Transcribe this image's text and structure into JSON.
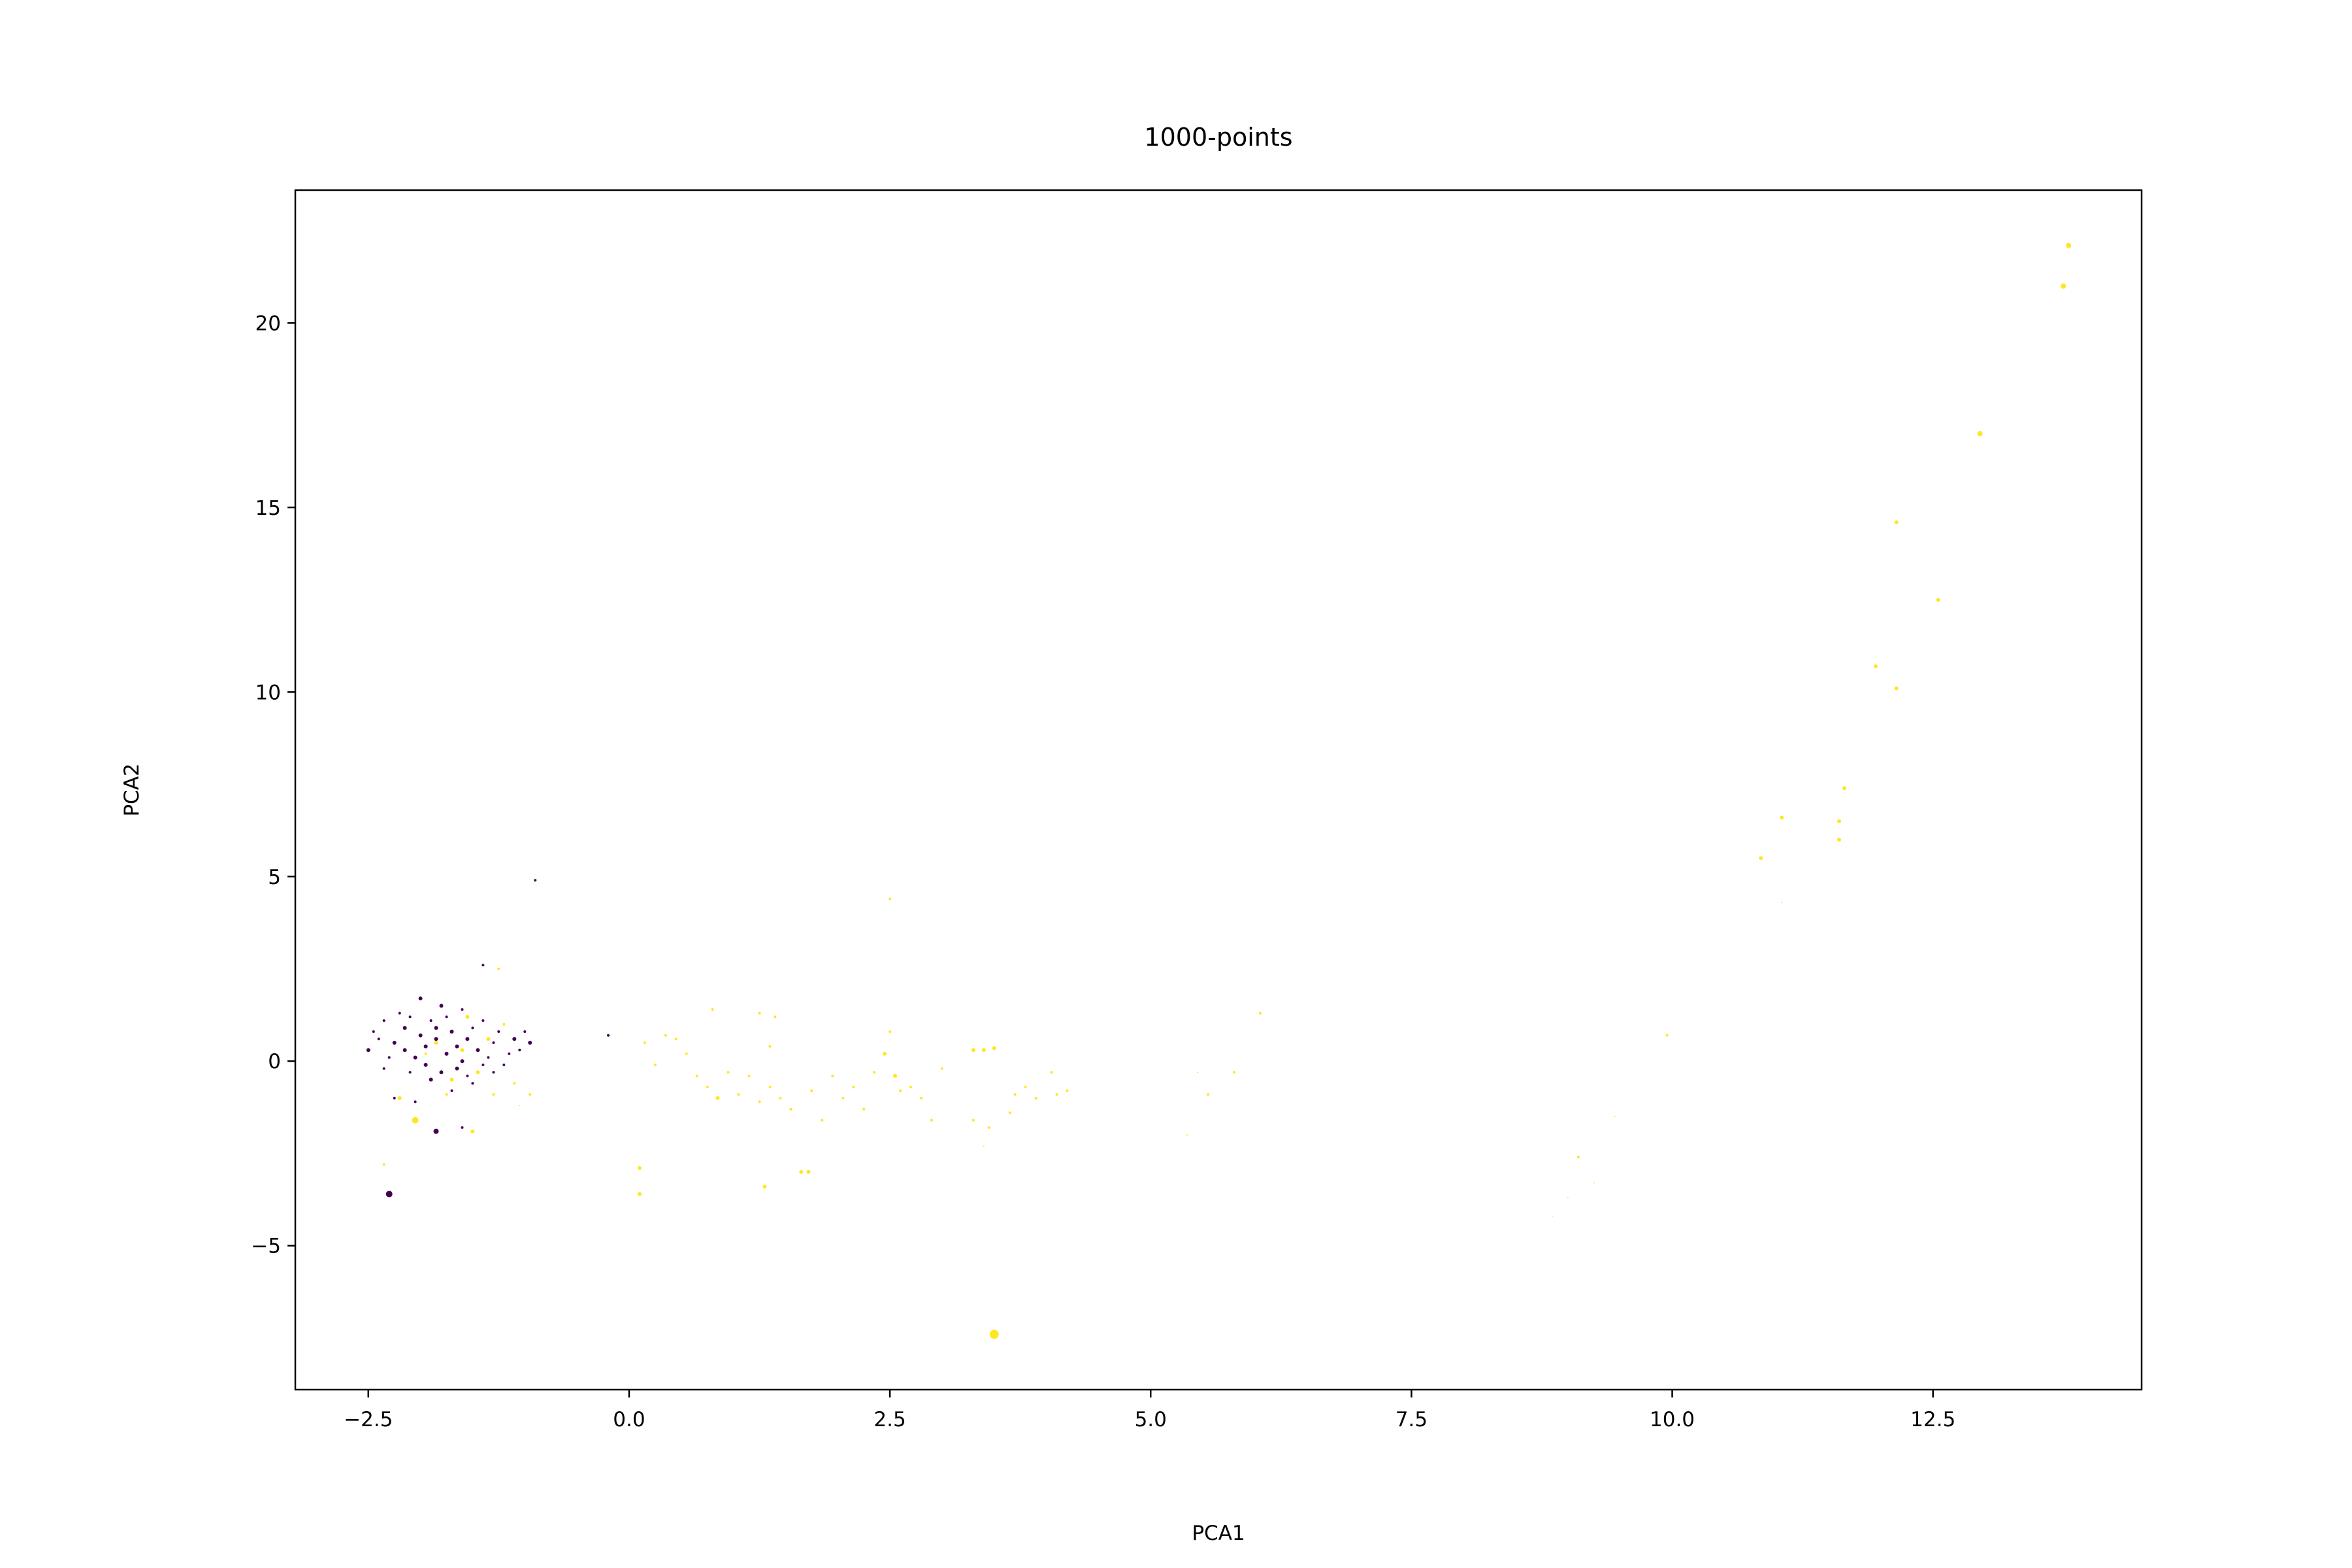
{
  "chart_data": {
    "type": "scatter",
    "title": "1000-points",
    "xlabel": "PCA1",
    "ylabel": "PCA2",
    "xlim": [
      -3.2,
      14.5
    ],
    "ylim": [
      -8.9,
      23.6
    ],
    "xticks": [
      -2.5,
      0.0,
      2.5,
      5.0,
      7.5,
      10.0,
      12.5
    ],
    "xtick_labels": [
      "−2.5",
      "0.0",
      "2.5",
      "5.0",
      "7.5",
      "10.0",
      "12.5"
    ],
    "yticks": [
      -5,
      0,
      5,
      10,
      15,
      20
    ],
    "ytick_labels": [
      "−5",
      "0",
      "5",
      "10",
      "15",
      "20"
    ],
    "grid": false,
    "legend": "none",
    "colors": {
      "class_0": "#440154",
      "class_1": "#fde725"
    },
    "series": [
      {
        "class": 0,
        "color": "#440154",
        "points": [
          {
            "x": -0.9,
            "y": 4.9,
            "s": 2
          },
          {
            "x": -1.4,
            "y": 2.6,
            "s": 2
          },
          {
            "x": -0.2,
            "y": 0.7,
            "s": 2
          },
          {
            "x": -2.3,
            "y": -3.6,
            "s": 5
          },
          {
            "x": -1.85,
            "y": -1.9,
            "s": 4
          },
          {
            "x": -1.6,
            "y": -1.8,
            "s": 2
          },
          {
            "x": -2.25,
            "y": -1.0,
            "s": 2
          },
          {
            "x": -2.05,
            "y": -1.1,
            "s": 2
          },
          {
            "x": -2.5,
            "y": 0.3,
            "s": 3
          },
          {
            "x": -2.45,
            "y": 0.8,
            "s": 2
          },
          {
            "x": -2.35,
            "y": 1.1,
            "s": 2
          },
          {
            "x": -2.2,
            "y": 1.3,
            "s": 2
          },
          {
            "x": -2.0,
            "y": 1.7,
            "s": 3
          },
          {
            "x": -1.8,
            "y": 1.5,
            "s": 3
          },
          {
            "x": -1.6,
            "y": 1.4,
            "s": 2
          },
          {
            "x": -1.4,
            "y": 1.1,
            "s": 2
          },
          {
            "x": -1.25,
            "y": 0.8,
            "s": 2
          },
          {
            "x": -1.1,
            "y": 0.6,
            "s": 3
          },
          {
            "x": -0.95,
            "y": 0.5,
            "s": 3
          },
          {
            "x": -1.0,
            "y": 0.8,
            "s": 2
          },
          {
            "x": -1.15,
            "y": 0.2,
            "s": 2
          },
          {
            "x": -1.3,
            "y": -0.3,
            "s": 2
          },
          {
            "x": -1.5,
            "y": -0.6,
            "s": 2
          },
          {
            "x": -1.7,
            "y": -0.8,
            "s": 2
          },
          {
            "x": -1.9,
            "y": -0.5,
            "s": 3
          },
          {
            "x": -2.1,
            "y": -0.3,
            "s": 2
          },
          {
            "x": -2.3,
            "y": 0.1,
            "s": 2
          },
          {
            "x": -2.15,
            "y": 0.9,
            "s": 3
          },
          {
            "x": -1.95,
            "y": 0.4,
            "s": 3
          },
          {
            "x": -1.75,
            "y": 0.2,
            "s": 3
          },
          {
            "x": -1.55,
            "y": 0.6,
            "s": 3
          },
          {
            "x": -1.85,
            "y": 0.9,
            "s": 3
          },
          {
            "x": -2.05,
            "y": 0.1,
            "s": 3
          },
          {
            "x": -1.65,
            "y": -0.2,
            "s": 3
          },
          {
            "x": -1.45,
            "y": 0.3,
            "s": 3
          },
          {
            "x": -1.9,
            "y": 1.1,
            "s": 2
          },
          {
            "x": -1.7,
            "y": 0.8,
            "s": 3
          },
          {
            "x": -2.25,
            "y": 0.5,
            "s": 3
          },
          {
            "x": -1.35,
            "y": 0.1,
            "s": 2
          },
          {
            "x": -1.6,
            "y": 0.0,
            "s": 3
          },
          {
            "x": -1.8,
            "y": -0.3,
            "s": 3
          },
          {
            "x": -2.0,
            "y": 0.7,
            "s": 3
          },
          {
            "x": -1.5,
            "y": 0.9,
            "s": 2
          },
          {
            "x": -1.3,
            "y": 0.5,
            "s": 2
          },
          {
            "x": -2.1,
            "y": 1.2,
            "s": 2
          },
          {
            "x": -1.75,
            "y": 1.2,
            "s": 2
          },
          {
            "x": -1.55,
            "y": -0.4,
            "s": 2
          },
          {
            "x": -1.95,
            "y": -0.1,
            "s": 3
          },
          {
            "x": -2.35,
            "y": -0.2,
            "s": 2
          },
          {
            "x": -1.4,
            "y": -0.1,
            "s": 2
          },
          {
            "x": -1.2,
            "y": -0.1,
            "s": 2
          },
          {
            "x": -1.05,
            "y": 0.3,
            "s": 2
          },
          {
            "x": -2.4,
            "y": 0.6,
            "s": 2
          },
          {
            "x": -1.85,
            "y": 0.6,
            "s": 3
          },
          {
            "x": -1.65,
            "y": 0.4,
            "s": 3
          },
          {
            "x": -2.15,
            "y": 0.3,
            "s": 3
          }
        ]
      },
      {
        "class": 1,
        "color": "#fde725",
        "points": [
          {
            "x": 13.8,
            "y": 22.1,
            "s": 4
          },
          {
            "x": 13.75,
            "y": 21.0,
            "s": 4
          },
          {
            "x": 12.95,
            "y": 17.0,
            "s": 4
          },
          {
            "x": 12.15,
            "y": 14.6,
            "s": 3
          },
          {
            "x": 12.55,
            "y": 12.5,
            "s": 3
          },
          {
            "x": 11.95,
            "y": 10.7,
            "s": 3
          },
          {
            "x": 12.15,
            "y": 10.1,
            "s": 3
          },
          {
            "x": 11.65,
            "y": 7.4,
            "s": 3
          },
          {
            "x": 11.6,
            "y": 6.5,
            "s": 3
          },
          {
            "x": 11.6,
            "y": 6.0,
            "s": 3
          },
          {
            "x": 11.05,
            "y": 6.6,
            "s": 3
          },
          {
            "x": 10.85,
            "y": 5.5,
            "s": 3
          },
          {
            "x": 11.05,
            "y": 4.3,
            "s": 1
          },
          {
            "x": 9.95,
            "y": 0.7,
            "s": 2
          },
          {
            "x": 9.45,
            "y": -1.5,
            "s": 1
          },
          {
            "x": 9.1,
            "y": -2.6,
            "s": 2
          },
          {
            "x": 9.25,
            "y": -3.3,
            "s": 1
          },
          {
            "x": 9.0,
            "y": -3.7,
            "s": 1
          },
          {
            "x": 8.85,
            "y": -4.2,
            "s": 1
          },
          {
            "x": 6.05,
            "y": 1.3,
            "s": 2
          },
          {
            "x": 5.8,
            "y": -0.3,
            "s": 2
          },
          {
            "x": 5.55,
            "y": -0.9,
            "s": 2
          },
          {
            "x": 5.45,
            "y": -0.3,
            "s": 1
          },
          {
            "x": 5.35,
            "y": -2.0,
            "s": 1
          },
          {
            "x": 2.5,
            "y": 4.4,
            "s": 2
          },
          {
            "x": 3.5,
            "y": -7.4,
            "s": 7
          },
          {
            "x": 3.3,
            "y": 0.3,
            "s": 3
          },
          {
            "x": 3.4,
            "y": 0.3,
            "s": 3
          },
          {
            "x": 3.5,
            "y": 0.35,
            "s": 3
          },
          {
            "x": 3.45,
            "y": -1.8,
            "s": 2
          },
          {
            "x": 3.4,
            "y": -2.3,
            "s": 1
          },
          {
            "x": 3.3,
            "y": -1.6,
            "s": 2
          },
          {
            "x": 3.7,
            "y": -0.9,
            "s": 2
          },
          {
            "x": 3.8,
            "y": -0.7,
            "s": 2
          },
          {
            "x": 3.65,
            "y": -1.4,
            "s": 2
          },
          {
            "x": 3.9,
            "y": -1.0,
            "s": 2
          },
          {
            "x": 4.05,
            "y": -0.3,
            "s": 2
          },
          {
            "x": 4.2,
            "y": -0.8,
            "s": 2
          },
          {
            "x": 4.1,
            "y": -0.9,
            "s": 2
          },
          {
            "x": 3.0,
            "y": -0.2,
            "s": 2
          },
          {
            "x": 2.9,
            "y": -1.6,
            "s": 2
          },
          {
            "x": 2.8,
            "y": -1.0,
            "s": 2
          },
          {
            "x": 2.7,
            "y": -0.7,
            "s": 2
          },
          {
            "x": 2.6,
            "y": -0.8,
            "s": 2
          },
          {
            "x": 2.55,
            "y": -0.4,
            "s": 3
          },
          {
            "x": 2.5,
            "y": 0.8,
            "s": 2
          },
          {
            "x": 2.45,
            "y": 0.2,
            "s": 3
          },
          {
            "x": 2.35,
            "y": -0.3,
            "s": 2
          },
          {
            "x": 2.25,
            "y": -1.3,
            "s": 2
          },
          {
            "x": 2.15,
            "y": -0.7,
            "s": 2
          },
          {
            "x": 2.05,
            "y": -1.0,
            "s": 2
          },
          {
            "x": 1.95,
            "y": -0.4,
            "s": 2
          },
          {
            "x": 1.85,
            "y": -1.6,
            "s": 2
          },
          {
            "x": 1.75,
            "y": -0.8,
            "s": 2
          },
          {
            "x": 1.65,
            "y": -3.0,
            "s": 3
          },
          {
            "x": 1.72,
            "y": -3.0,
            "s": 3
          },
          {
            "x": 1.55,
            "y": -1.3,
            "s": 2
          },
          {
            "x": 1.45,
            "y": -1.0,
            "s": 2
          },
          {
            "x": 1.35,
            "y": -0.7,
            "s": 2
          },
          {
            "x": 1.25,
            "y": -1.1,
            "s": 2
          },
          {
            "x": 1.3,
            "y": -3.4,
            "s": 3
          },
          {
            "x": 1.35,
            "y": 0.4,
            "s": 2
          },
          {
            "x": 1.25,
            "y": 1.3,
            "s": 2
          },
          {
            "x": 1.4,
            "y": 1.2,
            "s": 2
          },
          {
            "x": 1.15,
            "y": -0.4,
            "s": 2
          },
          {
            "x": 1.05,
            "y": -0.9,
            "s": 2
          },
          {
            "x": 0.95,
            "y": -0.3,
            "s": 2
          },
          {
            "x": 0.85,
            "y": -1.0,
            "s": 3
          },
          {
            "x": 0.8,
            "y": 1.4,
            "s": 2
          },
          {
            "x": 0.75,
            "y": -0.7,
            "s": 2
          },
          {
            "x": 0.65,
            "y": -0.4,
            "s": 2
          },
          {
            "x": 0.55,
            "y": 0.2,
            "s": 2
          },
          {
            "x": 0.45,
            "y": 0.6,
            "s": 2
          },
          {
            "x": 0.35,
            "y": 0.7,
            "s": 2
          },
          {
            "x": 0.25,
            "y": -0.1,
            "s": 2
          },
          {
            "x": 0.15,
            "y": 0.5,
            "s": 2
          },
          {
            "x": 0.1,
            "y": -2.9,
            "s": 3
          },
          {
            "x": 0.1,
            "y": -3.6,
            "s": 3
          },
          {
            "x": -0.95,
            "y": -0.9,
            "s": 2
          },
          {
            "x": -1.05,
            "y": -1.2,
            "s": 1
          },
          {
            "x": -1.1,
            "y": -0.6,
            "s": 2
          },
          {
            "x": -1.25,
            "y": 2.5,
            "s": 2
          },
          {
            "x": -1.5,
            "y": -1.9,
            "s": 3
          },
          {
            "x": -2.05,
            "y": -1.6,
            "s": 5
          },
          {
            "x": -2.2,
            "y": -1.0,
            "s": 3
          },
          {
            "x": -2.35,
            "y": -2.8,
            "s": 2
          },
          {
            "x": -1.35,
            "y": 0.6,
            "s": 3
          },
          {
            "x": -1.55,
            "y": 1.2,
            "s": 3
          },
          {
            "x": -1.7,
            "y": -0.5,
            "s": 3
          },
          {
            "x": -1.85,
            "y": 0.5,
            "s": 3
          },
          {
            "x": -1.45,
            "y": -0.3,
            "s": 3
          },
          {
            "x": -1.6,
            "y": 0.3,
            "s": 3
          },
          {
            "x": -1.3,
            "y": -0.9,
            "s": 2
          },
          {
            "x": -1.95,
            "y": 0.2,
            "s": 2
          },
          {
            "x": -1.2,
            "y": 1.0,
            "s": 2
          },
          {
            "x": -1.75,
            "y": -0.9,
            "s": 2
          }
        ]
      }
    ]
  }
}
